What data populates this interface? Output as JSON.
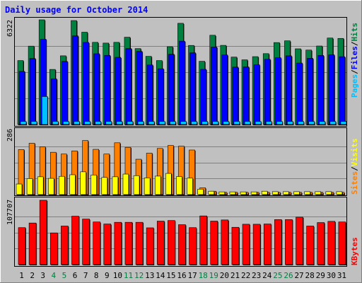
{
  "chart_data": {
    "type": "bar",
    "title": "Daily usage for October 2014",
    "colors": {
      "title": "#0000ff",
      "background": "#c0c0c0",
      "hits": "#008040",
      "files": "#0000ff",
      "pages": "#00c0ff",
      "visits": "#ffff00",
      "sites": "#ff8000",
      "kbytes": "#ff0000",
      "weekend_label": "#008040",
      "weekday_label": "#000000"
    },
    "categories": [
      "1",
      "2",
      "3",
      "4",
      "5",
      "6",
      "7",
      "8",
      "9",
      "10",
      "11",
      "12",
      "13",
      "14",
      "15",
      "16",
      "17",
      "18",
      "19",
      "20",
      "21",
      "22",
      "23",
      "24",
      "25",
      "26",
      "27",
      "28",
      "29",
      "30",
      "31"
    ],
    "weekend_days": [
      4,
      5,
      11,
      12,
      18,
      19,
      25,
      26
    ],
    "panels": [
      {
        "key": "hits_files_pages",
        "max_label": "6322",
        "ylim": [
          0,
          6322
        ],
        "legend": [
          {
            "label": "Pages",
            "color_key": "pages"
          },
          {
            "label": "/",
            "color_key": "weekday_label"
          },
          {
            "label": "Files",
            "color_key": "files"
          },
          {
            "label": "/",
            "color_key": "weekday_label"
          },
          {
            "label": "Hits",
            "color_key": "hits"
          }
        ],
        "series": [
          {
            "name": "Hits",
            "color_key": "hits",
            "values": [
              3862,
              4734,
              6322,
              3327,
              4149,
              6277,
              5574,
              4962,
              4917,
              4962,
              5272,
              4585,
              4117,
              3862,
              4697,
              6112,
              4775,
              3818,
              5390,
              4780,
              4073,
              3906,
              4099,
              4280,
              4948,
              5054,
              4572,
              4496,
              4742,
              5223,
              5200
            ]
          },
          {
            "name": "Files",
            "color_key": "files",
            "values": [
              3210,
              3985,
              5150,
              2755,
              3814,
              5354,
              4958,
              4274,
              4175,
              4058,
              4585,
              4417,
              3596,
              3368,
              4244,
              5034,
              4332,
              3333,
              4678,
              4202,
              3467,
              3479,
              3609,
              3940,
              4035,
              4148,
              3713,
              3997,
              4171,
              4215,
              4095
            ]
          },
          {
            "name": "Pages",
            "color_key": "pages",
            "values": [
              186,
              186,
              1691,
              186,
              186,
              186,
              186,
              186,
              186,
              186,
              186,
              186,
              186,
              186,
              186,
              186,
              186,
              186,
              186,
              186,
              186,
              186,
              186,
              186,
              186,
              186,
              186,
              186,
              186,
              186,
              186
            ]
          }
        ]
      },
      {
        "key": "sites_visits",
        "max_label": "286",
        "ylim": [
          0,
          286
        ],
        "legend": [
          {
            "label": "Sites",
            "color_key": "sites"
          },
          {
            "label": "/",
            "color_key": "weekday_label"
          },
          {
            "label": "Visits",
            "color_key": "visits"
          }
        ],
        "series": [
          {
            "name": "Sites",
            "color_key": "sites",
            "values": [
              200,
              228,
              212,
              188,
              180,
              194,
              240,
              201,
              180,
              230,
              210,
              157,
              184,
              205,
              218,
              215,
              198,
              30,
              15,
              10,
              10,
              10,
              10,
              10,
              10,
              10,
              10,
              10,
              10,
              10,
              10
            ]
          },
          {
            "name": "Visits",
            "color_key": "visits",
            "values": [
              47,
              71,
              79,
              72,
              81,
              88,
              101,
              87,
              76,
              79,
              91,
              84,
              74,
              82,
              94,
              80,
              73,
              24,
              15,
              12,
              12,
              12,
              12,
              15,
              13,
              13,
              13,
              13,
              13,
              13,
              13
            ]
          }
        ]
      },
      {
        "key": "kbytes",
        "max_label": "107707",
        "ylim": [
          0,
          107707
        ],
        "legend": [
          {
            "label": "KBytes",
            "color_key": "kbytes"
          }
        ],
        "series": [
          {
            "name": "KBytes",
            "color_key": "kbytes",
            "values": [
              61890,
              69610,
              107707,
              53060,
              64550,
              81040,
              76240,
              71390,
              67980,
              70820,
              70820,
              70820,
              61580,
              72800,
              73800,
              66840,
              61890,
              81480,
              72800,
              74740,
              62460,
              67560,
              67560,
              67980,
              75320,
              75320,
              79420,
              64550,
              70380,
              72380,
              71390
            ]
          }
        ]
      }
    ]
  }
}
